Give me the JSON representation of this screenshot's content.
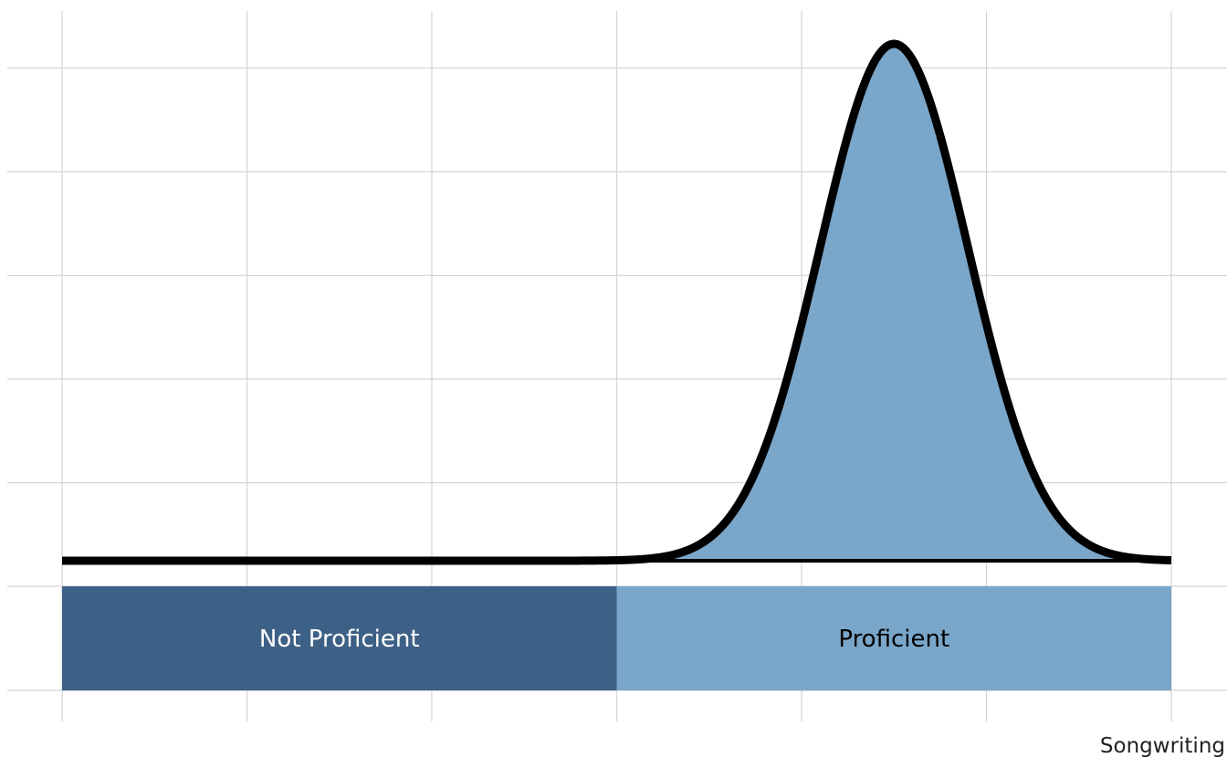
{
  "chart_data": {
    "type": "area",
    "title": "",
    "xlabel": "Songwriting",
    "ylabel": "",
    "xlim": [
      0,
      6
    ],
    "ylim": [
      0,
      5
    ],
    "grid": true,
    "x_gridlines": [
      0,
      1,
      2,
      3,
      4,
      5,
      6
    ],
    "y_gridlines": [
      -1,
      0,
      1,
      2,
      3,
      4,
      5
    ],
    "density": {
      "distribution": "normal",
      "mean": 4.5,
      "sd": 0.4,
      "peak": 4.8,
      "color": "#7aa6c9",
      "outline_color": "#000000",
      "fill_from_x": 3.0
    },
    "bands": [
      {
        "label": "Not Proficient",
        "x_start": 0,
        "x_end": 3,
        "color": "#3d6186",
        "text_color": "#ffffff"
      },
      {
        "label": "Proficient",
        "x_start": 3,
        "x_end": 6,
        "color": "#7aa6c9",
        "text_color": "#000000"
      }
    ]
  }
}
